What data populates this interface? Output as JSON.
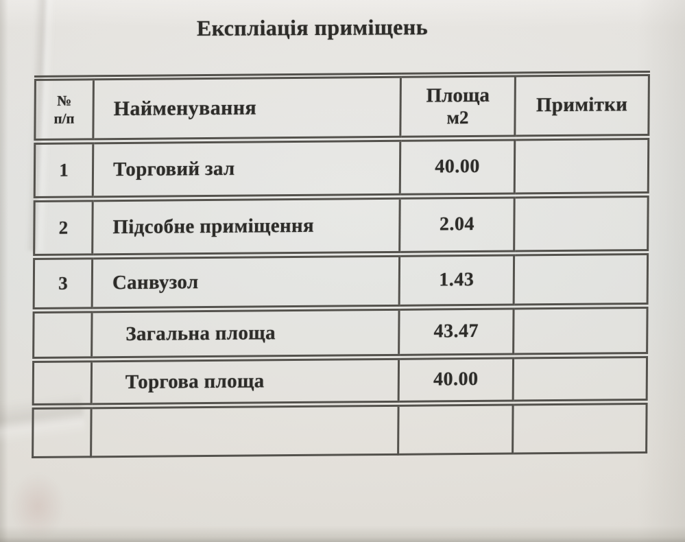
{
  "document": {
    "title": "Експліація приміщень"
  },
  "colors": {
    "paper": "#e8e6e1",
    "line": "#53514c",
    "ink": "#2d2c29"
  },
  "table": {
    "headers": {
      "num_top": "№",
      "num_bottom": "п/п",
      "name": "Найменування",
      "area_top": "Площа",
      "area_bottom": "м2",
      "notes": "Примітки"
    },
    "rows": [
      {
        "num": "1",
        "name": "Торговий зал",
        "area": "40.00",
        "notes": ""
      },
      {
        "num": "2",
        "name": "Підсобне приміщення",
        "area": "2.04",
        "notes": ""
      },
      {
        "num": "3",
        "name": "Санвузол",
        "area": "1.43",
        "notes": ""
      },
      {
        "num": "",
        "name": "Загальна площа",
        "area": "43.47",
        "notes": ""
      },
      {
        "num": "",
        "name": "Торгова площа",
        "area": "40.00",
        "notes": ""
      },
      {
        "num": "",
        "name": "",
        "area": "",
        "notes": ""
      }
    ]
  }
}
